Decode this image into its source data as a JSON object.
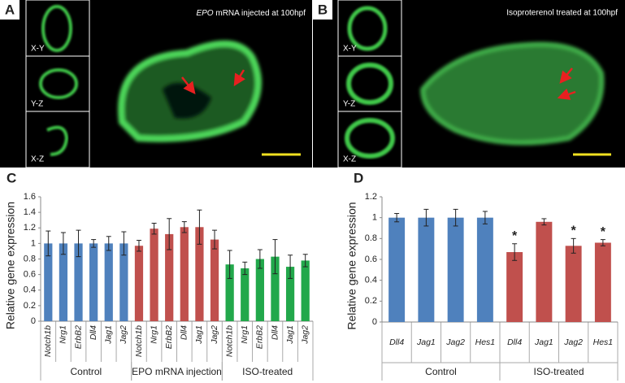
{
  "panels": {
    "A": {
      "label": "A",
      "annotation": {
        "italic": "EPO",
        "text": " mRNA injected at 100hpf"
      },
      "views": [
        "X-Y",
        "Y-Z",
        "X-Z"
      ]
    },
    "B": {
      "label": "B",
      "annotation": "Isoproterenol treated at 100hpf",
      "views": [
        "X-Y",
        "Y-Z",
        "X-Z"
      ]
    }
  },
  "chart_data": [
    {
      "type": "bar",
      "panel": "C",
      "ylabel": "Relative gene expression",
      "categories": [
        "Notch1b",
        "Nrg1",
        "ErbB2",
        "Dll4",
        "Jag1",
        "Jag2",
        "Notch1b",
        "Nrg1",
        "ErbB2",
        "Dll4",
        "Jag1",
        "Jag2",
        "Notch1b",
        "Nrg1",
        "ErbB2",
        "Dll4",
        "Jag1",
        "Jag2"
      ],
      "ylim": [
        0,
        1.6
      ],
      "yticks": [
        0,
        0.2,
        0.4,
        0.6,
        0.8,
        1,
        1.2,
        1.4,
        1.6
      ],
      "series": [
        {
          "name": "Control",
          "color": "#4f81bd",
          "values": [
            1,
            1,
            1,
            1,
            1,
            1,
            null,
            null,
            null,
            null,
            null,
            null,
            null,
            null,
            null,
            null,
            null,
            null
          ],
          "errors": [
            0.16,
            0.14,
            0.17,
            0.05,
            0.09,
            0.15,
            null,
            null,
            null,
            null,
            null,
            null,
            null,
            null,
            null,
            null,
            null,
            null
          ]
        },
        {
          "name": "EPO mRNA injection",
          "color": "#c0504d",
          "values": [
            null,
            null,
            null,
            null,
            null,
            null,
            0.97,
            1.19,
            1.12,
            1.21,
            1.21,
            1.05,
            null,
            null,
            null,
            null,
            null,
            null
          ],
          "errors": [
            null,
            null,
            null,
            null,
            null,
            null,
            0.07,
            0.07,
            0.2,
            0.07,
            0.22,
            0.12,
            null,
            null,
            null,
            null,
            null,
            null
          ]
        },
        {
          "name": "ISO-treated",
          "color": "#22a84b",
          "values": [
            null,
            null,
            null,
            null,
            null,
            null,
            null,
            null,
            null,
            null,
            null,
            null,
            0.73,
            0.68,
            0.8,
            0.83,
            0.7,
            0.78
          ],
          "errors": [
            null,
            null,
            null,
            null,
            null,
            null,
            null,
            null,
            null,
            null,
            null,
            null,
            0.18,
            0.08,
            0.12,
            0.22,
            0.15,
            0.08
          ]
        }
      ]
    },
    {
      "type": "bar",
      "panel": "D",
      "ylabel": "Relative gene expression",
      "categories": [
        "Dll4",
        "Jag1",
        "Jag2",
        "Hes1",
        "Dll4",
        "Jag1",
        "Jag2",
        "Hes1"
      ],
      "ylim": [
        0,
        1.2
      ],
      "yticks": [
        0,
        0.2,
        0.4,
        0.6,
        0.8,
        1,
        1.2
      ],
      "series": [
        {
          "name": "Control",
          "color": "#4f81bd",
          "values": [
            1,
            1,
            1,
            1,
            null,
            null,
            null,
            null
          ],
          "errors": [
            0.04,
            0.08,
            0.08,
            0.06,
            null,
            null,
            null,
            null
          ]
        },
        {
          "name": "ISO-treated",
          "color": "#c0504d",
          "values": [
            null,
            null,
            null,
            null,
            0.67,
            0.96,
            0.73,
            0.76
          ],
          "errors": [
            null,
            null,
            null,
            null,
            0.08,
            0.03,
            0.07,
            0.03
          ],
          "annotations": [
            null,
            null,
            null,
            null,
            "*",
            null,
            "*",
            "*"
          ]
        }
      ]
    }
  ]
}
